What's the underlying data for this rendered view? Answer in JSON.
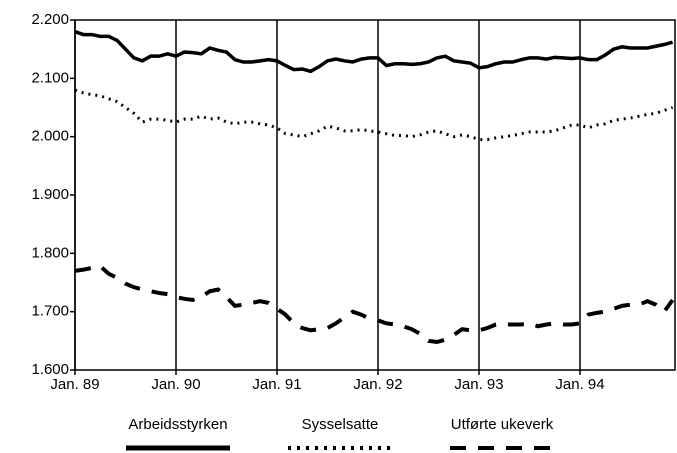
{
  "chart_data": {
    "type": "line",
    "categories": [
      "Jan. 89",
      null,
      null,
      null,
      null,
      null,
      null,
      null,
      null,
      null,
      null,
      null,
      "Jan. 90",
      null,
      null,
      null,
      null,
      null,
      null,
      null,
      null,
      null,
      null,
      null,
      "Jan. 91",
      null,
      null,
      null,
      null,
      null,
      null,
      null,
      null,
      null,
      null,
      null,
      "Jan. 92",
      null,
      null,
      null,
      null,
      null,
      null,
      null,
      null,
      null,
      null,
      null,
      "Jan. 93",
      null,
      null,
      null,
      null,
      null,
      null,
      null,
      null,
      null,
      null,
      null,
      "Jan. 94",
      null,
      null,
      null,
      null,
      null,
      null,
      null,
      null,
      null,
      null,
      null
    ],
    "series": [
      {
        "name": "Arbeidsstyrken",
        "color": "#000000",
        "style": "solid",
        "values": [
          2180,
          2175,
          2175,
          2172,
          2172,
          2165,
          2150,
          2135,
          2130,
          2138,
          2138,
          2142,
          2138,
          2145,
          2144,
          2142,
          2152,
          2148,
          2145,
          2132,
          2128,
          2128,
          2130,
          2132,
          2130,
          2122,
          2115,
          2116,
          2112,
          2120,
          2130,
          2133,
          2130,
          2128,
          2133,
          2135,
          2135,
          2122,
          2125,
          2125,
          2124,
          2125,
          2128,
          2135,
          2138,
          2130,
          2128,
          2126,
          2118,
          2120,
          2125,
          2128,
          2128,
          2132,
          2135,
          2135,
          2133,
          2136,
          2135,
          2134,
          2135,
          2132,
          2132,
          2140,
          2150,
          2154,
          2152,
          2152,
          2152,
          2155,
          2158,
          2162
        ]
      },
      {
        "name": "Sysselsatte",
        "color": "#000000",
        "style": "dotted",
        "values": [
          2080,
          2075,
          2072,
          2070,
          2065,
          2060,
          2050,
          2040,
          2025,
          2030,
          2030,
          2028,
          2025,
          2030,
          2030,
          2035,
          2030,
          2032,
          2025,
          2022,
          2025,
          2025,
          2022,
          2020,
          2015,
          2005,
          2003,
          2000,
          2005,
          2010,
          2018,
          2015,
          2010,
          2010,
          2012,
          2010,
          2008,
          2005,
          2002,
          2002,
          2000,
          2003,
          2008,
          2010,
          2005,
          2000,
          2003,
          2000,
          1995,
          1995,
          1998,
          2000,
          2002,
          2005,
          2008,
          2008,
          2008,
          2010,
          2015,
          2020,
          2020,
          2015,
          2020,
          2022,
          2028,
          2030,
          2032,
          2035,
          2038,
          2040,
          2045,
          2050
        ]
      },
      {
        "name": "Utførte ukeverk",
        "color": "#000000",
        "style": "dashed",
        "values": [
          1770,
          1772,
          1775,
          1778,
          1765,
          1758,
          1748,
          1742,
          1738,
          1735,
          1732,
          1730,
          1725,
          1722,
          1720,
          1725,
          1735,
          1738,
          1725,
          1710,
          1712,
          1715,
          1718,
          1715,
          1705,
          1695,
          1680,
          1672,
          1668,
          1670,
          1672,
          1680,
          1690,
          1700,
          1695,
          1688,
          1685,
          1680,
          1678,
          1675,
          1670,
          1662,
          1650,
          1648,
          1652,
          1660,
          1670,
          1668,
          1668,
          1672,
          1678,
          1678,
          1678,
          1678,
          1680,
          1675,
          1678,
          1680,
          1678,
          1678,
          1680,
          1695,
          1698,
          1700,
          1705,
          1710,
          1712,
          1712,
          1718,
          1712,
          1700,
          1720
        ]
      }
    ],
    "ylim": [
      1600,
      2200
    ],
    "yticks": [
      {
        "value": 1600,
        "label": "1.600"
      },
      {
        "value": 1700,
        "label": "1.700"
      },
      {
        "value": 1800,
        "label": "1.800"
      },
      {
        "value": 1900,
        "label": "1.900"
      },
      {
        "value": 2000,
        "label": "2.000"
      },
      {
        "value": 2100,
        "label": "2.100"
      },
      {
        "value": 2200,
        "label": "2.200"
      }
    ],
    "grid": true,
    "legend": "bottom"
  }
}
